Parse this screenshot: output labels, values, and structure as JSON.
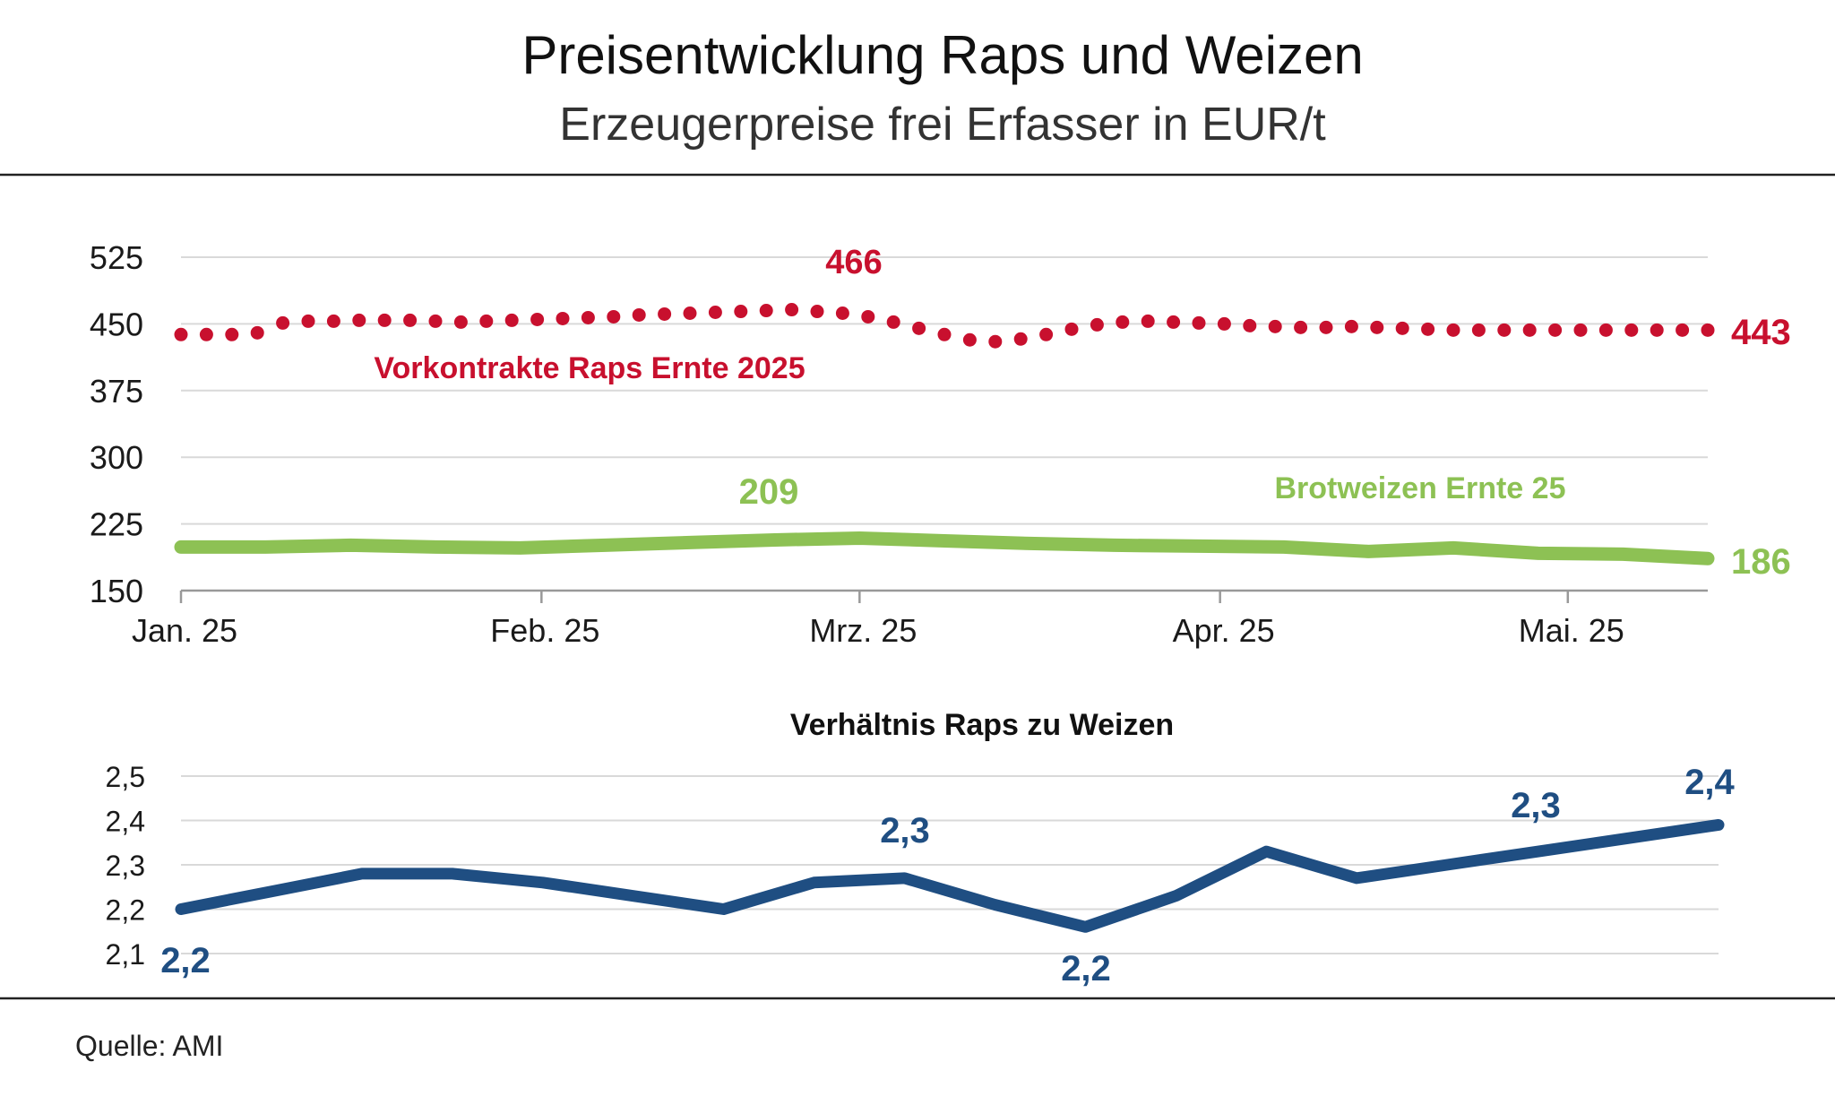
{
  "header": {
    "title": "Preisentwicklung Raps und Weizen",
    "subtitle": "Erzeugerpreise frei Erfasser in EUR/t"
  },
  "source": "Quelle: AMI",
  "colors": {
    "raps": "#c8102e",
    "weizen": "#8dc154",
    "ratio": "#1f4e82",
    "grid": "#d9d9d9",
    "rule": "#222222"
  },
  "chart_data": [
    {
      "type": "line",
      "title": "",
      "ylim": [
        150,
        525
      ],
      "yticks": [
        "525",
        "450",
        "375",
        "300",
        "225",
        "150"
      ],
      "ytick_values": [
        525,
        450,
        375,
        300,
        225,
        150
      ],
      "xticks": [
        "Jan. 25",
        "Feb. 25",
        "Mrz. 25",
        "Apr. 25",
        "Mai. 25"
      ],
      "x_range": [
        0,
        18
      ],
      "xtick_positions": [
        0,
        4.25,
        8,
        12.25,
        16.35
      ],
      "series": [
        {
          "name": "Vorkontrakte Raps Ernte 2025",
          "style": "dotted",
          "x": [
            0,
            0.3,
            0.6,
            0.9,
            1.2,
            1.5,
            1.8,
            2.1,
            2.4,
            2.7,
            3.0,
            3.3,
            3.6,
            3.9,
            4.2,
            4.5,
            4.8,
            5.1,
            5.4,
            5.7,
            6.0,
            6.3,
            6.6,
            6.9,
            7.2,
            7.5,
            7.8,
            8.1,
            8.4,
            8.7,
            9.0,
            9.3,
            9.6,
            9.9,
            10.2,
            10.5,
            10.8,
            11.1,
            11.4,
            11.7,
            12.0,
            12.3,
            12.6,
            12.9,
            13.2,
            13.5,
            13.8,
            14.1,
            14.4,
            14.7,
            15.0,
            15.3,
            15.6,
            15.9,
            16.2,
            16.5,
            16.8,
            17.1,
            17.4,
            17.7,
            18.0
          ],
          "values": [
            438,
            438,
            438,
            440,
            451,
            453,
            453,
            454,
            454,
            454,
            453,
            452,
            453,
            454,
            455,
            456,
            457,
            458,
            460,
            461,
            462,
            463,
            464,
            465,
            466,
            464,
            462,
            458,
            452,
            445,
            438,
            432,
            430,
            433,
            438,
            444,
            449,
            452,
            453,
            452,
            451,
            450,
            448,
            447,
            446,
            446,
            447,
            446,
            445,
            444,
            443,
            443,
            443,
            443,
            443,
            443,
            443,
            443,
            443,
            443,
            443
          ]
        },
        {
          "name": "Brotweizen Ernte 25",
          "style": "solid",
          "x": [
            0,
            1,
            2,
            3,
            4,
            5,
            6,
            7,
            8,
            9,
            10,
            11,
            12,
            13,
            14,
            15,
            16,
            17,
            18
          ],
          "values": [
            199,
            199,
            201,
            199,
            198,
            201,
            204,
            207,
            209,
            206,
            203,
            201,
            200,
            199,
            194,
            198,
            192,
            191,
            186
          ]
        }
      ],
      "annotations": [
        {
          "text": "466",
          "series": "Vorkontrakte Raps Ernte 2025"
        },
        {
          "text": "443",
          "series": "Vorkontrakte Raps Ernte 2025"
        },
        {
          "text": "209",
          "series": "Brotweizen Ernte 25"
        },
        {
          "text": "186",
          "series": "Brotweizen Ernte 25"
        }
      ]
    },
    {
      "type": "line",
      "title": "Verhältnis Raps zu Weizen",
      "ylim": [
        2.1,
        2.5
      ],
      "yticks": [
        "2,5",
        "2,4",
        "2,3",
        "2,2",
        "2,1"
      ],
      "ytick_values": [
        2.5,
        2.4,
        2.3,
        2.2,
        2.1
      ],
      "x_range": [
        0,
        17
      ],
      "series": [
        {
          "name": "Verhältnis Raps zu Weizen",
          "style": "solid",
          "x": [
            0,
            1,
            2,
            3,
            4,
            5,
            6,
            7,
            8,
            9,
            10,
            11,
            12,
            13,
            14,
            15,
            16,
            17
          ],
          "values": [
            2.2,
            2.24,
            2.28,
            2.28,
            2.26,
            2.23,
            2.2,
            2.26,
            2.27,
            2.21,
            2.16,
            2.23,
            2.33,
            2.27,
            2.3,
            2.33,
            2.36,
            2.39
          ]
        }
      ],
      "annotations": [
        {
          "text": "2,2"
        },
        {
          "text": "2,3"
        },
        {
          "text": "2,2"
        },
        {
          "text": "2,3"
        },
        {
          "text": "2,4"
        }
      ]
    }
  ]
}
